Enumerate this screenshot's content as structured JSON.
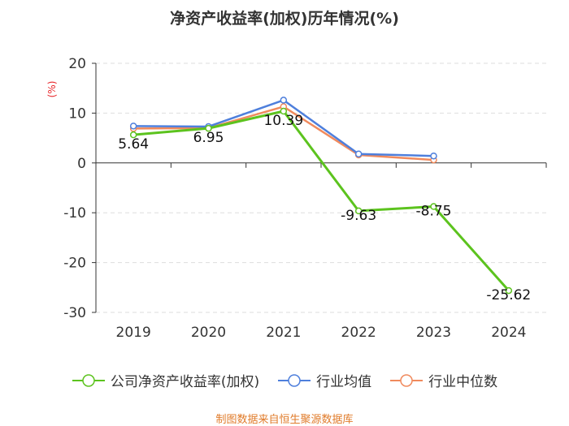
{
  "chart_data": {
    "type": "line",
    "title": "净资产收益率(加权)历年情况(%)",
    "ylabel": "(%)",
    "xlabel": "",
    "categories": [
      "2019",
      "2020",
      "2021",
      "2022",
      "2023",
      "2024"
    ],
    "ylim": [
      -30,
      20
    ],
    "yticks": [
      20,
      10,
      0,
      -10,
      -20,
      -30
    ],
    "grid": true,
    "legend_position": "bottom",
    "series": [
      {
        "name": "公司净资产收益率(加权)",
        "color": "#5cc31e",
        "values": [
          5.64,
          6.95,
          10.39,
          -9.63,
          -8.75,
          -25.62
        ],
        "labels": [
          "5.64",
          "6.95",
          "10.39",
          "-9.63",
          "-8.75",
          "-25.62"
        ]
      },
      {
        "name": "行业均值",
        "color": "#4e7fdc",
        "values": [
          7.4,
          7.3,
          12.6,
          1.8,
          1.4,
          null
        ]
      },
      {
        "name": "行业中位数",
        "color": "#f08a5d",
        "values": [
          6.9,
          7.0,
          11.3,
          1.6,
          0.6,
          null
        ]
      }
    ]
  },
  "source_text": "制图数据来自恒生聚源数据库"
}
